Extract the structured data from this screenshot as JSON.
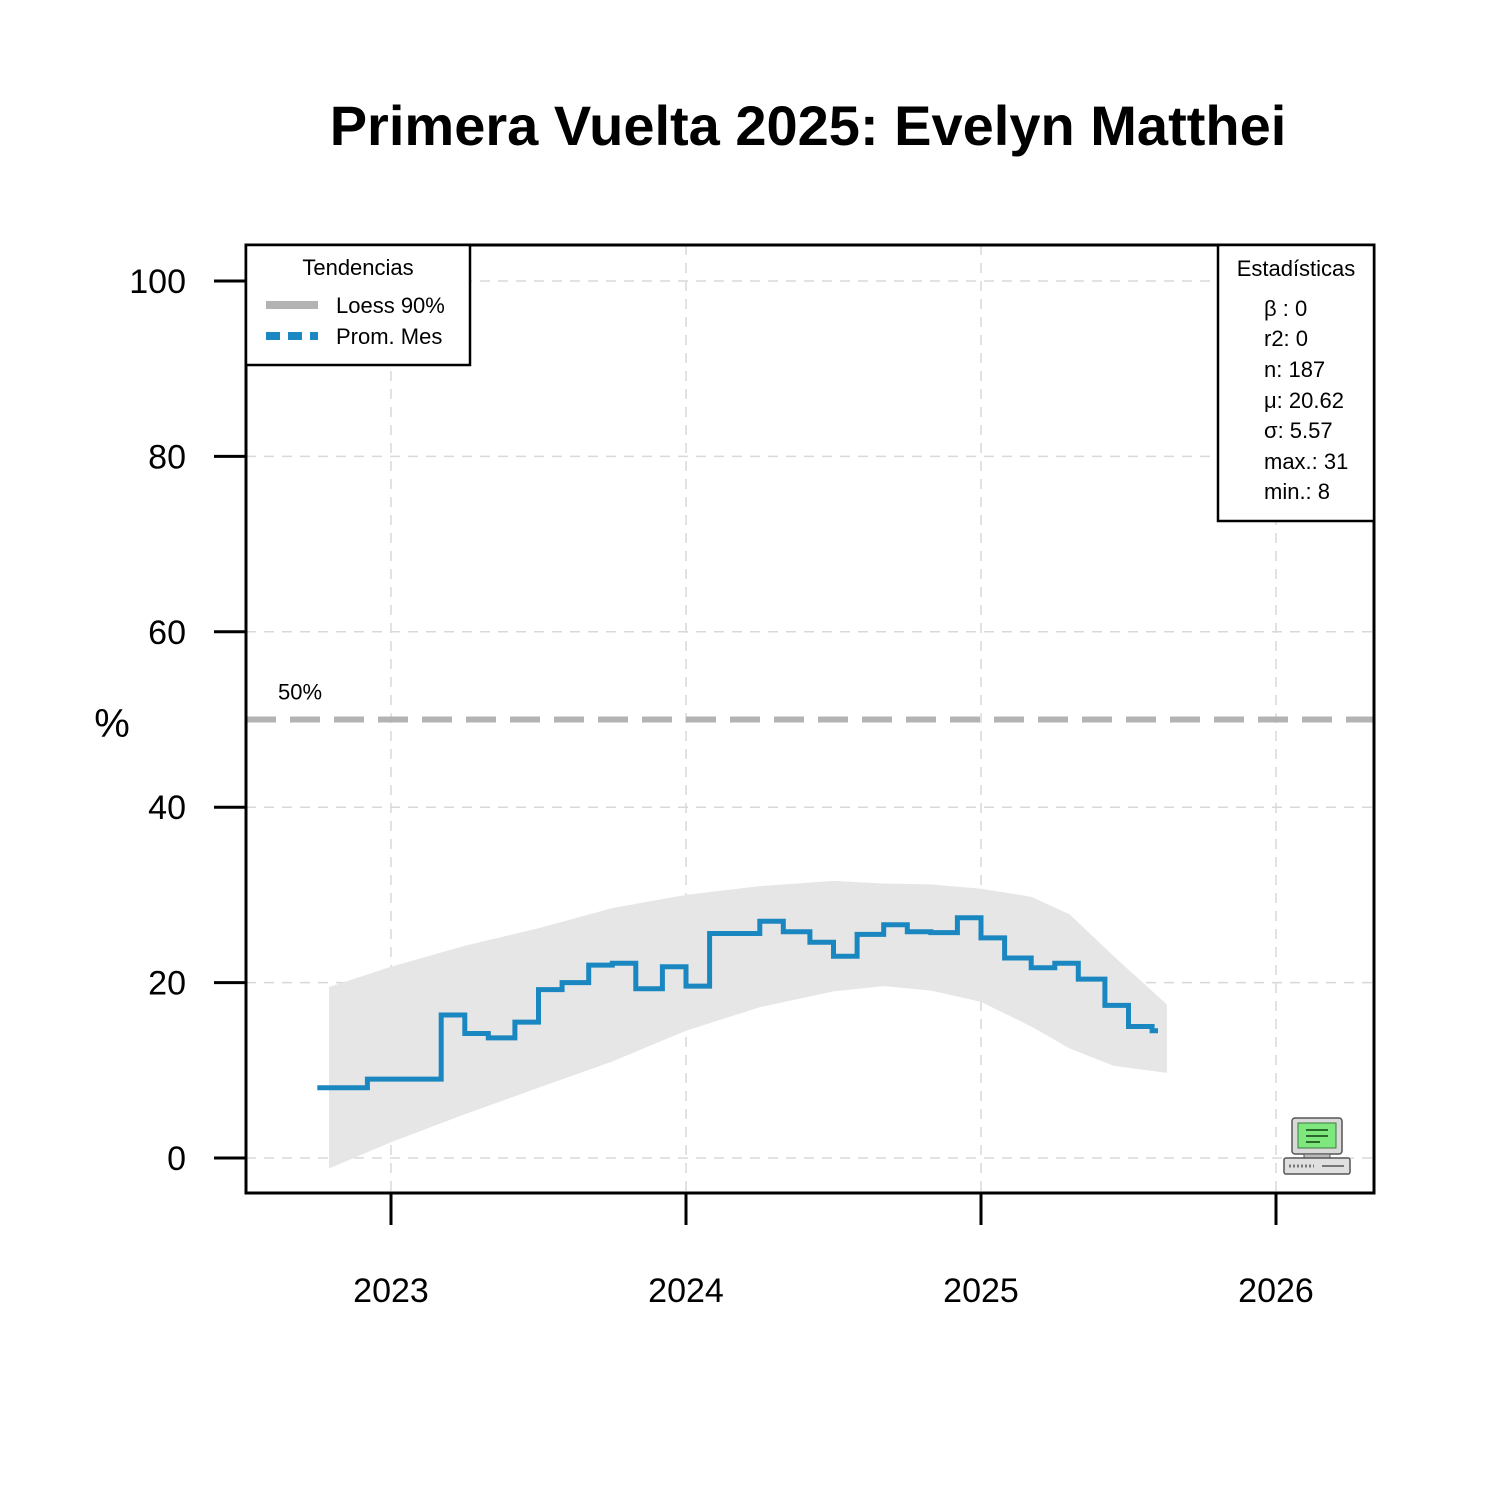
{
  "chart_data": {
    "type": "line",
    "title": "Primera Vuelta 2025: Evelyn Matthei",
    "xlabel": "",
    "ylabel": "%",
    "xlim": [
      2022.5,
      2026.3
    ],
    "ylim": [
      -4,
      104
    ],
    "x_ticks": [
      {
        "value": 2023,
        "label": "2023"
      },
      {
        "value": 2024,
        "label": "2024"
      },
      {
        "value": 2025,
        "label": "2025"
      },
      {
        "value": 2026,
        "label": "2026"
      }
    ],
    "y_ticks": [
      {
        "value": 0,
        "label": "0"
      },
      {
        "value": 20,
        "label": "20"
      },
      {
        "value": 40,
        "label": "40"
      },
      {
        "value": 60,
        "label": "60"
      },
      {
        "value": 80,
        "label": "80"
      },
      {
        "value": 100,
        "label": "100"
      }
    ],
    "grid": true,
    "reference_line": {
      "value": 50,
      "label": "50%"
    },
    "series": [
      {
        "name": "Prom. Mes",
        "style": "step",
        "color": "#1a87c0",
        "points": [
          [
            2022.75,
            8
          ],
          [
            2022.92,
            9
          ],
          [
            2023.17,
            16.3
          ],
          [
            2023.25,
            14.2
          ],
          [
            2023.33,
            13.7
          ],
          [
            2023.42,
            15.5
          ],
          [
            2023.5,
            19.2
          ],
          [
            2023.58,
            20
          ],
          [
            2023.67,
            22
          ],
          [
            2023.75,
            22.2
          ],
          [
            2023.83,
            19.3
          ],
          [
            2023.92,
            21.8
          ],
          [
            2024.0,
            19.6
          ],
          [
            2024.08,
            25.6
          ],
          [
            2024.25,
            27
          ],
          [
            2024.33,
            25.8
          ],
          [
            2024.42,
            24.6
          ],
          [
            2024.5,
            23
          ],
          [
            2024.58,
            25.5
          ],
          [
            2024.67,
            26.6
          ],
          [
            2024.75,
            25.8
          ],
          [
            2024.83,
            25.7
          ],
          [
            2024.92,
            27.4
          ],
          [
            2025.0,
            25.1
          ],
          [
            2025.08,
            22.8
          ],
          [
            2025.17,
            21.7
          ],
          [
            2025.25,
            22.2
          ],
          [
            2025.33,
            20.4
          ],
          [
            2025.42,
            17.4
          ],
          [
            2025.5,
            15
          ],
          [
            2025.58,
            14.5
          ]
        ]
      }
    ],
    "band": {
      "name": "Loess 90%",
      "color": "#e6e6e6",
      "x": [
        2022.79,
        2023.0,
        2023.25,
        2023.5,
        2023.75,
        2024.0,
        2024.25,
        2024.5,
        2024.67,
        2024.83,
        2025.0,
        2025.17,
        2025.3,
        2025.45,
        2025.63
      ],
      "upper": [
        19.5,
        21.8,
        24.2,
        26.2,
        28.5,
        30.0,
        31.0,
        31.6,
        31.3,
        31.2,
        30.7,
        29.8,
        27.8,
        23.0,
        17.5
      ],
      "lower": [
        -1.2,
        1.8,
        5.0,
        8.0,
        11.0,
        14.5,
        17.2,
        19.0,
        19.6,
        19.1,
        17.8,
        15.0,
        12.5,
        10.5,
        9.7
      ]
    },
    "legend": {
      "title": "Tendencias",
      "position": "top-left",
      "entries": [
        {
          "label": "Loess 90%",
          "color": "#b3b3b3",
          "line": "solid"
        },
        {
          "label": "Prom. Mes",
          "color": "#1a87c0",
          "line": "dashed"
        }
      ]
    },
    "stats_box": {
      "title": "Estadísticas",
      "position": "top-right",
      "lines": [
        "β : 0",
        "r2: 0",
        "n: 187",
        "μ: 20.62",
        "σ: 5.57",
        "max.: 31",
        "min.: 8"
      ]
    },
    "icon": "computer-icon"
  }
}
